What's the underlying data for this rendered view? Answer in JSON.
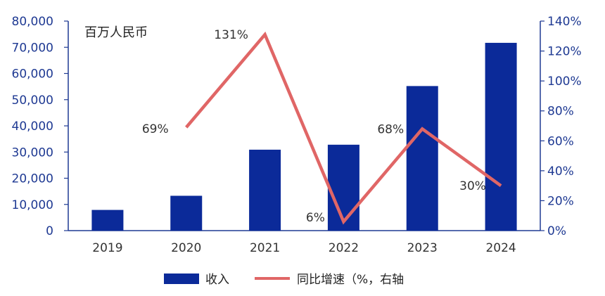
{
  "chart_data": {
    "type": "bar+line",
    "unit_label": "百万人民币",
    "categories": [
      "2019",
      "2020",
      "2021",
      "2022",
      "2023",
      "2024"
    ],
    "series": [
      {
        "name": "收入",
        "type": "bar",
        "axis": "left",
        "color": "#0b2a99",
        "values": [
          7900,
          13300,
          30900,
          32800,
          55200,
          71700
        ]
      },
      {
        "name": "同比增速（%，右轴",
        "type": "line",
        "axis": "right",
        "color": "#e06666",
        "values": [
          null,
          69,
          131,
          6,
          68,
          30
        ],
        "labels": [
          "",
          "69%",
          "131%",
          "6%",
          "68%",
          "30%"
        ]
      }
    ],
    "left_axis": {
      "min": 0,
      "max": 80000,
      "ticks": [
        "0",
        "10,000",
        "20,000",
        "30,000",
        "40,000",
        "50,000",
        "60,000",
        "70,000",
        "80,000"
      ]
    },
    "right_axis": {
      "min": 0,
      "max": 140,
      "ticks": [
        "0%",
        "20%",
        "40%",
        "60%",
        "80%",
        "100%",
        "120%",
        "140%"
      ]
    },
    "legend_position": "bottom",
    "grid": false
  }
}
